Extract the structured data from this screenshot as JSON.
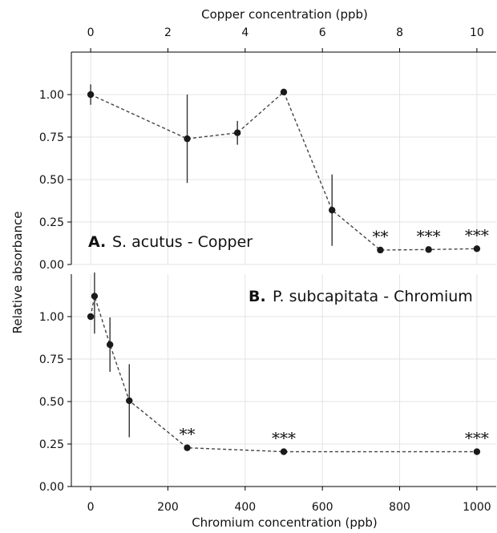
{
  "chart_data": [
    {
      "type": "line",
      "panel_letter": "A.",
      "panel_text": "S. acutus - Copper",
      "xlabel": "Copper concentration (ppb)",
      "xlabel_position": "top",
      "ylabel": "Relative absorbance",
      "xlim": [
        -0.5,
        10.5
      ],
      "ylim": [
        0,
        1.25
      ],
      "xticks": [
        0,
        2,
        4,
        6,
        8,
        10
      ],
      "yticks": [
        0.0,
        0.25,
        0.5,
        0.75,
        1.0
      ],
      "ytick_labels": [
        "0.00",
        "0.25",
        "0.50",
        "0.75",
        "1.00"
      ],
      "grid": true,
      "x": [
        0,
        2.5,
        3.8,
        5.0,
        6.25,
        7.5,
        8.75,
        10
      ],
      "y": [
        1.0,
        0.74,
        0.775,
        1.015,
        0.32,
        0.085,
        0.088,
        0.093
      ],
      "error": [
        0.06,
        0.26,
        0.07,
        0.0,
        0.21,
        0.0,
        0.0,
        0.0
      ],
      "significance": [
        "",
        "",
        "",
        "",
        "",
        "**",
        "***",
        "***"
      ]
    },
    {
      "type": "line",
      "panel_letter": "B.",
      "panel_text": "P. subcapitata - Chromium",
      "xlabel": "Chromium concentration (ppb)",
      "xlabel_position": "bottom",
      "ylabel": "Relative absorbance",
      "xlim": [
        -50,
        1050
      ],
      "ylim": [
        0,
        1.25
      ],
      "xticks": [
        0,
        200,
        400,
        600,
        800,
        1000
      ],
      "yticks": [
        0.0,
        0.25,
        0.5,
        0.75,
        1.0
      ],
      "ytick_labels": [
        "0.00",
        "0.25",
        "0.50",
        "0.75",
        "1.00"
      ],
      "grid": true,
      "x": [
        0,
        10,
        50,
        100,
        250,
        500,
        1000
      ],
      "y": [
        1.0,
        1.12,
        0.835,
        0.505,
        0.228,
        0.205,
        0.205
      ],
      "error": [
        0.0,
        0.22,
        0.16,
        0.215,
        0.0,
        0.0,
        0.0
      ],
      "significance": [
        "",
        "",
        "",
        "",
        "**",
        "***",
        "***"
      ]
    }
  ]
}
